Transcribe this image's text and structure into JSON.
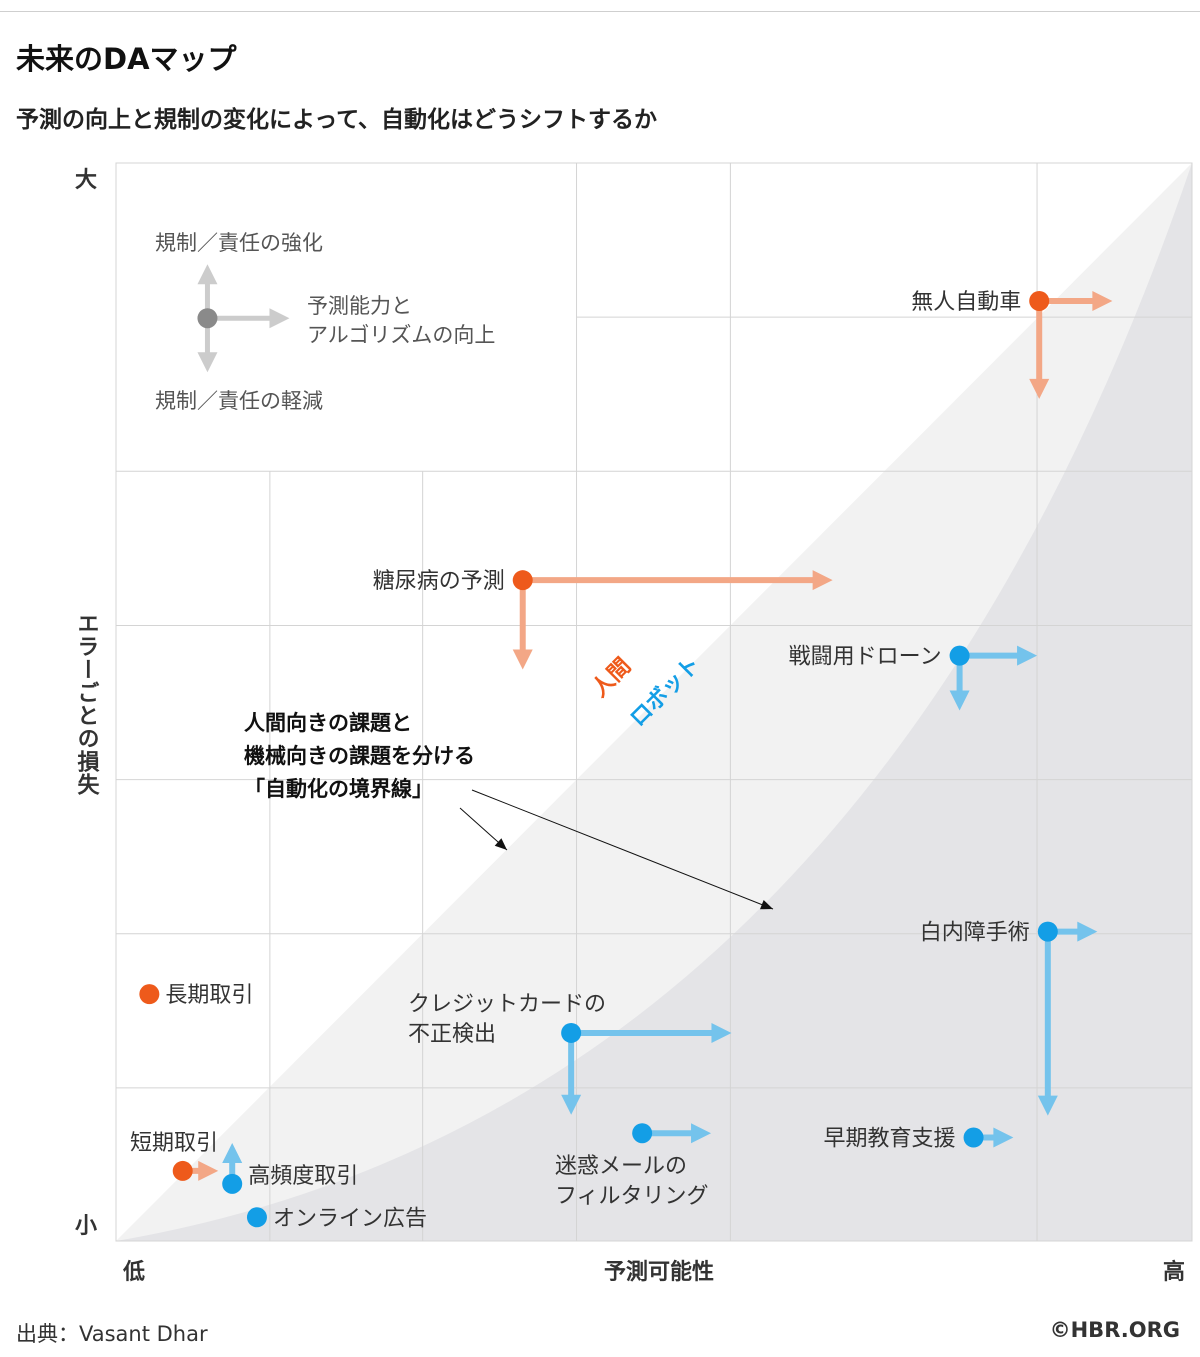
{
  "title": "未来のDAマップ",
  "subtitle": "予測の向上と規制の変化によって、自動化はどうシフトするか",
  "source": "出典：Vasant Dhar",
  "credit": "©HBR.ORG",
  "colors": {
    "human": "#ee5a1b",
    "human_arrow": "#f3a786",
    "robot": "#139ee6",
    "robot_arrow": "#74c3ec",
    "legend_dot": "#8a8a8a",
    "legend_arrow": "#cccccc",
    "grid": "#d4d4d4",
    "region_light": "#f2f2f2",
    "region_dark": "#e4e4e7"
  },
  "chart_data": {
    "type": "scatter",
    "xlabel": "予測可能性",
    "ylabel": "エラーごとの損失",
    "x_low_label": "低",
    "x_high_label": "高",
    "y_high_label": "大",
    "y_low_label": "小",
    "xlim": [
      0,
      100
    ],
    "ylim": [
      0,
      100
    ],
    "region_labels": {
      "human": "人間",
      "robot": "ロボット"
    },
    "legend": {
      "up": "規制／責任の強化",
      "right": [
        "予測能力と",
        "アルゴリズムの向上"
      ],
      "down": "規制／責任の軽減"
    },
    "annotation": {
      "lines": [
        "人間向きの課題と",
        "機械向きの課題を分ける",
        "「自動化の境界線」"
      ]
    },
    "series": [
      {
        "name": "人間",
        "points": [
          {
            "label": [
              "無人自動車"
            ],
            "x": 85.8,
            "y": 87.2,
            "right": 6.8,
            "down": -9.1,
            "up": 0
          },
          {
            "label": [
              "糖尿病の予測"
            ],
            "x": 37.8,
            "y": 61.3,
            "right": 28.8,
            "down": -8.3,
            "up": 0
          },
          {
            "label": [
              "長期取引"
            ],
            "x": 3.1,
            "y": 22.9,
            "right": 0,
            "down": 0,
            "up": 0
          },
          {
            "label": [
              "短期取引"
            ],
            "x": 6.2,
            "y": 6.5,
            "right": 3.3,
            "down": 0,
            "up": 0
          }
        ]
      },
      {
        "name": "ロボット",
        "points": [
          {
            "label": [
              "戦闘用ドローン"
            ],
            "x": 78.4,
            "y": 54.3,
            "right": 7.2,
            "down": -5.1,
            "up": 0
          },
          {
            "label": [
              "白内障手術"
            ],
            "x": 86.6,
            "y": 28.7,
            "right": 4.6,
            "down": -17.1,
            "up": 0
          },
          {
            "label": [
              "クレジットカードの",
              "不正検出"
            ],
            "x": 42.3,
            "y": 19.3,
            "right": 14.9,
            "down": -7.6,
            "up": 0
          },
          {
            "label": [
              "迷惑メールの",
              "フィルタリング"
            ],
            "x": 48.9,
            "y": 10.0,
            "right": 6.4,
            "down": 0,
            "up": 0
          },
          {
            "label": [
              "早期教育支援"
            ],
            "x": 79.7,
            "y": 9.6,
            "right": 3.7,
            "down": 0,
            "up": 0
          },
          {
            "label": [
              "高頻度取引"
            ],
            "x": 10.8,
            "y": 5.3,
            "right": 0,
            "down": 0,
            "up": 3.8
          },
          {
            "label": [
              "オンライン広告"
            ],
            "x": 13.1,
            "y": 2.2,
            "right": 0,
            "down": 0,
            "up": 0
          }
        ]
      }
    ]
  }
}
